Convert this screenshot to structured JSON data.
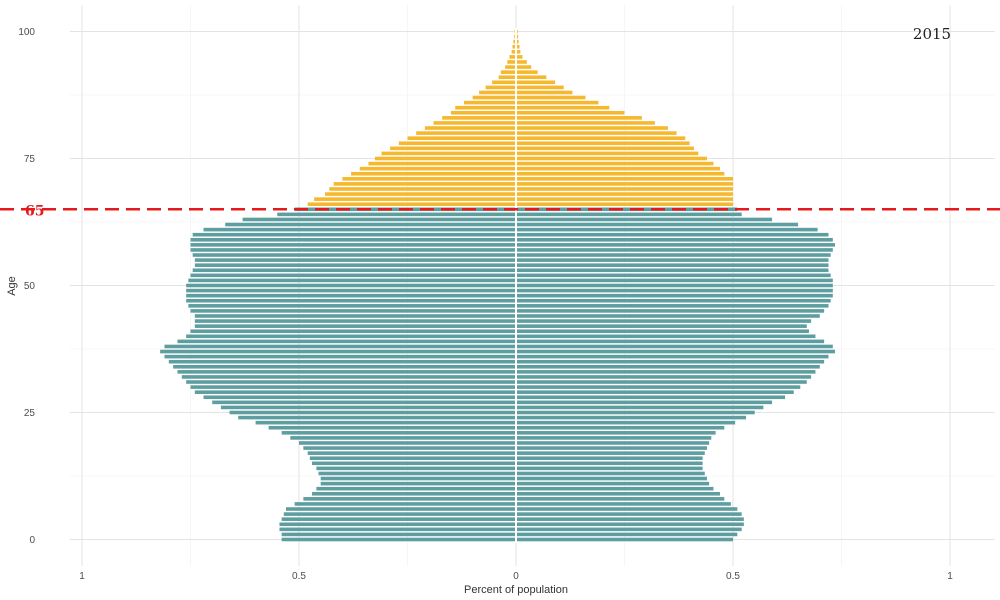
{
  "chart_data": {
    "type": "bar",
    "orientation": "horizontal",
    "annotation": "2015",
    "xlabel": "Percent of population",
    "ylabel": "Age",
    "xlim": [
      -1.05,
      1.05
    ],
    "ylim": [
      -5,
      105
    ],
    "x_ticks": [
      {
        "value": -1,
        "label": "1"
      },
      {
        "value": -0.5,
        "label": "0.5"
      },
      {
        "value": 0,
        "label": "0"
      },
      {
        "value": 0.5,
        "label": "0.5"
      },
      {
        "value": 1,
        "label": "1"
      }
    ],
    "y_ticks": [
      0,
      25,
      50,
      75,
      100
    ],
    "grid": true,
    "reference_line": {
      "age": 65,
      "label": "65",
      "color": "#e41a1c"
    },
    "colors": {
      "working_age": "#5f9ea0",
      "elderly": "#f5b82e",
      "divider": "#ffffff"
    },
    "ages": [
      0,
      1,
      2,
      3,
      4,
      5,
      6,
      7,
      8,
      9,
      10,
      11,
      12,
      13,
      14,
      15,
      16,
      17,
      18,
      19,
      20,
      21,
      22,
      23,
      24,
      25,
      26,
      27,
      28,
      29,
      30,
      31,
      32,
      33,
      34,
      35,
      36,
      37,
      38,
      39,
      40,
      41,
      42,
      43,
      44,
      45,
      46,
      47,
      48,
      49,
      50,
      51,
      52,
      53,
      54,
      55,
      56,
      57,
      58,
      59,
      60,
      61,
      62,
      63,
      64,
      65,
      66,
      67,
      68,
      69,
      70,
      71,
      72,
      73,
      74,
      75,
      76,
      77,
      78,
      79,
      80,
      81,
      82,
      83,
      84,
      85,
      86,
      87,
      88,
      89,
      90,
      91,
      92,
      93,
      94,
      95,
      96,
      97,
      98,
      99,
      100
    ],
    "series": [
      {
        "side": "left",
        "values": [
          0.54,
          0.54,
          0.545,
          0.545,
          0.54,
          0.535,
          0.53,
          0.51,
          0.49,
          0.47,
          0.46,
          0.45,
          0.45,
          0.455,
          0.46,
          0.47,
          0.475,
          0.48,
          0.49,
          0.5,
          0.52,
          0.54,
          0.57,
          0.6,
          0.64,
          0.66,
          0.68,
          0.7,
          0.72,
          0.74,
          0.75,
          0.76,
          0.77,
          0.78,
          0.79,
          0.8,
          0.81,
          0.82,
          0.81,
          0.78,
          0.76,
          0.75,
          0.74,
          0.74,
          0.74,
          0.75,
          0.755,
          0.76,
          0.76,
          0.76,
          0.76,
          0.755,
          0.75,
          0.745,
          0.74,
          0.74,
          0.745,
          0.75,
          0.75,
          0.75,
          0.745,
          0.72,
          0.67,
          0.63,
          0.55,
          0.51,
          0.48,
          0.465,
          0.44,
          0.43,
          0.42,
          0.4,
          0.38,
          0.36,
          0.34,
          0.325,
          0.31,
          0.29,
          0.27,
          0.25,
          0.23,
          0.21,
          0.19,
          0.17,
          0.15,
          0.14,
          0.12,
          0.1,
          0.085,
          0.07,
          0.055,
          0.04,
          0.035,
          0.025,
          0.02,
          0.015,
          0.01,
          0.008,
          0.006,
          0.004,
          0.003
        ]
      },
      {
        "side": "right",
        "values": [
          0.5,
          0.51,
          0.52,
          0.525,
          0.525,
          0.52,
          0.51,
          0.495,
          0.48,
          0.47,
          0.455,
          0.445,
          0.44,
          0.435,
          0.43,
          0.43,
          0.43,
          0.435,
          0.44,
          0.445,
          0.45,
          0.46,
          0.48,
          0.505,
          0.53,
          0.55,
          0.57,
          0.59,
          0.62,
          0.64,
          0.655,
          0.67,
          0.68,
          0.69,
          0.7,
          0.71,
          0.72,
          0.735,
          0.73,
          0.71,
          0.69,
          0.675,
          0.67,
          0.68,
          0.7,
          0.71,
          0.72,
          0.725,
          0.73,
          0.73,
          0.73,
          0.73,
          0.725,
          0.72,
          0.72,
          0.72,
          0.725,
          0.73,
          0.735,
          0.73,
          0.72,
          0.695,
          0.65,
          0.59,
          0.52,
          0.51,
          0.5,
          0.5,
          0.5,
          0.5,
          0.5,
          0.5,
          0.48,
          0.47,
          0.455,
          0.44,
          0.42,
          0.41,
          0.4,
          0.39,
          0.37,
          0.35,
          0.32,
          0.29,
          0.25,
          0.215,
          0.19,
          0.16,
          0.13,
          0.11,
          0.09,
          0.07,
          0.05,
          0.035,
          0.025,
          0.015,
          0.01,
          0.008,
          0.006,
          0.005,
          0.004
        ]
      }
    ]
  }
}
